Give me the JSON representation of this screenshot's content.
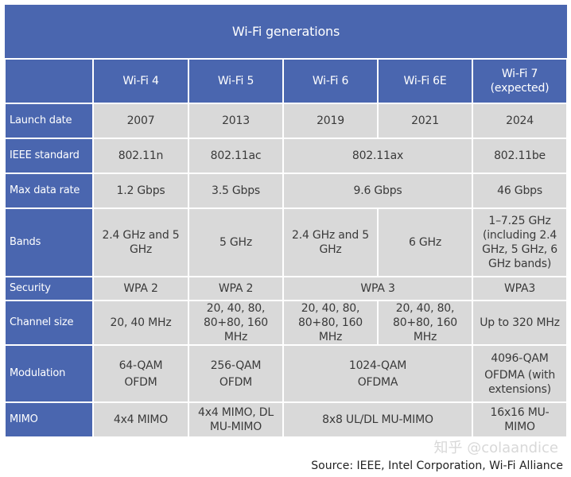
{
  "title": "Wi-Fi generations",
  "columns": [
    "Wi-Fi 4",
    "Wi-Fi 5",
    "Wi-Fi 6",
    "Wi-Fi 6E",
    "Wi-Fi 7 (expected)"
  ],
  "rows": {
    "launch": {
      "label": "Launch date",
      "values": [
        "2007",
        "2013",
        "2019",
        "2021",
        "2024"
      ]
    },
    "ieee": {
      "label": "IEEE standard",
      "values": [
        "802.11n",
        "802.11ac",
        "802.11ax",
        "802.11be"
      ]
    },
    "rate": {
      "label": "Max data rate",
      "values": [
        "1.2 Gbps",
        "3.5 Gbps",
        "9.6 Gbps",
        "46 Gbps"
      ]
    },
    "bands": {
      "label": "Bands",
      "values": [
        "2.4 GHz and 5 GHz",
        "5 GHz",
        "2.4 GHz and 5 GHz",
        "6 GHz",
        "1–7.25 GHz (including 2.4 GHz, 5 GHz, 6 GHz bands)"
      ]
    },
    "security": {
      "label": "Security",
      "values": [
        "WPA 2",
        "WPA 2",
        "WPA 3",
        "WPA3"
      ]
    },
    "channel": {
      "label": "Channel size",
      "values": [
        "20, 40 MHz",
        "20, 40, 80, 80+80, 160 MHz",
        "20, 40, 80, 80+80, 160 MHz",
        "20, 40, 80, 80+80, 160 MHz",
        "Up to 320 MHz"
      ]
    },
    "modulation": {
      "label": "Modulation",
      "values": [
        [
          "64-QAM",
          "OFDM"
        ],
        [
          "256-QAM",
          "OFDM"
        ],
        [
          "1024-QAM",
          "OFDMA"
        ],
        [
          "4096-QAM",
          "OFDMA (with extensions)"
        ]
      ]
    },
    "mimo": {
      "label": "MIMO",
      "values": [
        "4x4 MIMO",
        "4x4 MIMO, DL MU-MIMO",
        "8x8 UL/DL MU-MIMO",
        "16x16 MU-MIMO"
      ]
    }
  },
  "source": "Source: IEEE, Intel Corporation, Wi-Fi Alliance",
  "watermark": "知乎 @colaandice"
}
